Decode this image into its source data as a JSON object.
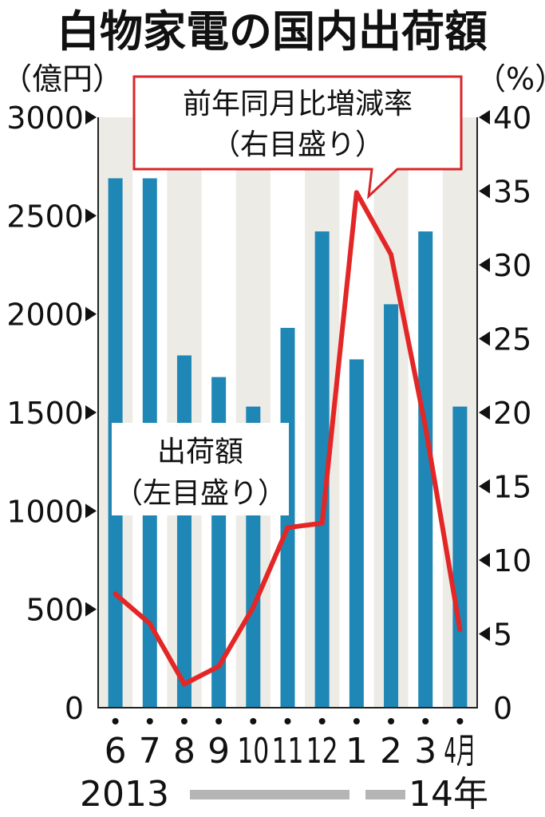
{
  "chart_data": {
    "type": "bar+line",
    "title": "白物家電の国内出荷額",
    "left_unit": "（億円）",
    "right_unit": "（%）",
    "categories": [
      "6",
      "7",
      "8",
      "9",
      "10",
      "11",
      "12",
      "1",
      "2",
      "3",
      "4月"
    ],
    "years": {
      "start": "2013",
      "end": "14年"
    },
    "left_axis": {
      "min": 0,
      "max": 3000,
      "ticks": [
        "0",
        "500",
        "1000",
        "1500",
        "2000",
        "2500",
        "3000"
      ]
    },
    "right_axis": {
      "min": 0,
      "max": 40,
      "ticks": [
        "0",
        "5",
        "10",
        "15",
        "20",
        "25",
        "30",
        "35",
        "40"
      ]
    },
    "series": [
      {
        "name": "出荷額",
        "name_line2": "（左目盛り）",
        "kind": "bar",
        "axis": "left",
        "color": "#1f87b5",
        "values": [
          2690,
          2690,
          1790,
          1680,
          1530,
          1930,
          2420,
          1770,
          2050,
          2420,
          1530
        ]
      },
      {
        "name": "前年同月比増減率",
        "name_line2": "（右目盛り）",
        "kind": "line",
        "axis": "right",
        "color": "#e32626",
        "values": [
          7.7,
          5.7,
          1.6,
          2.8,
          6.8,
          12.2,
          12.5,
          34.9,
          30.7,
          19.0,
          5.3
        ]
      }
    ]
  },
  "colors": {
    "band": "#ecebe6",
    "callout_border": "#d8262a"
  }
}
